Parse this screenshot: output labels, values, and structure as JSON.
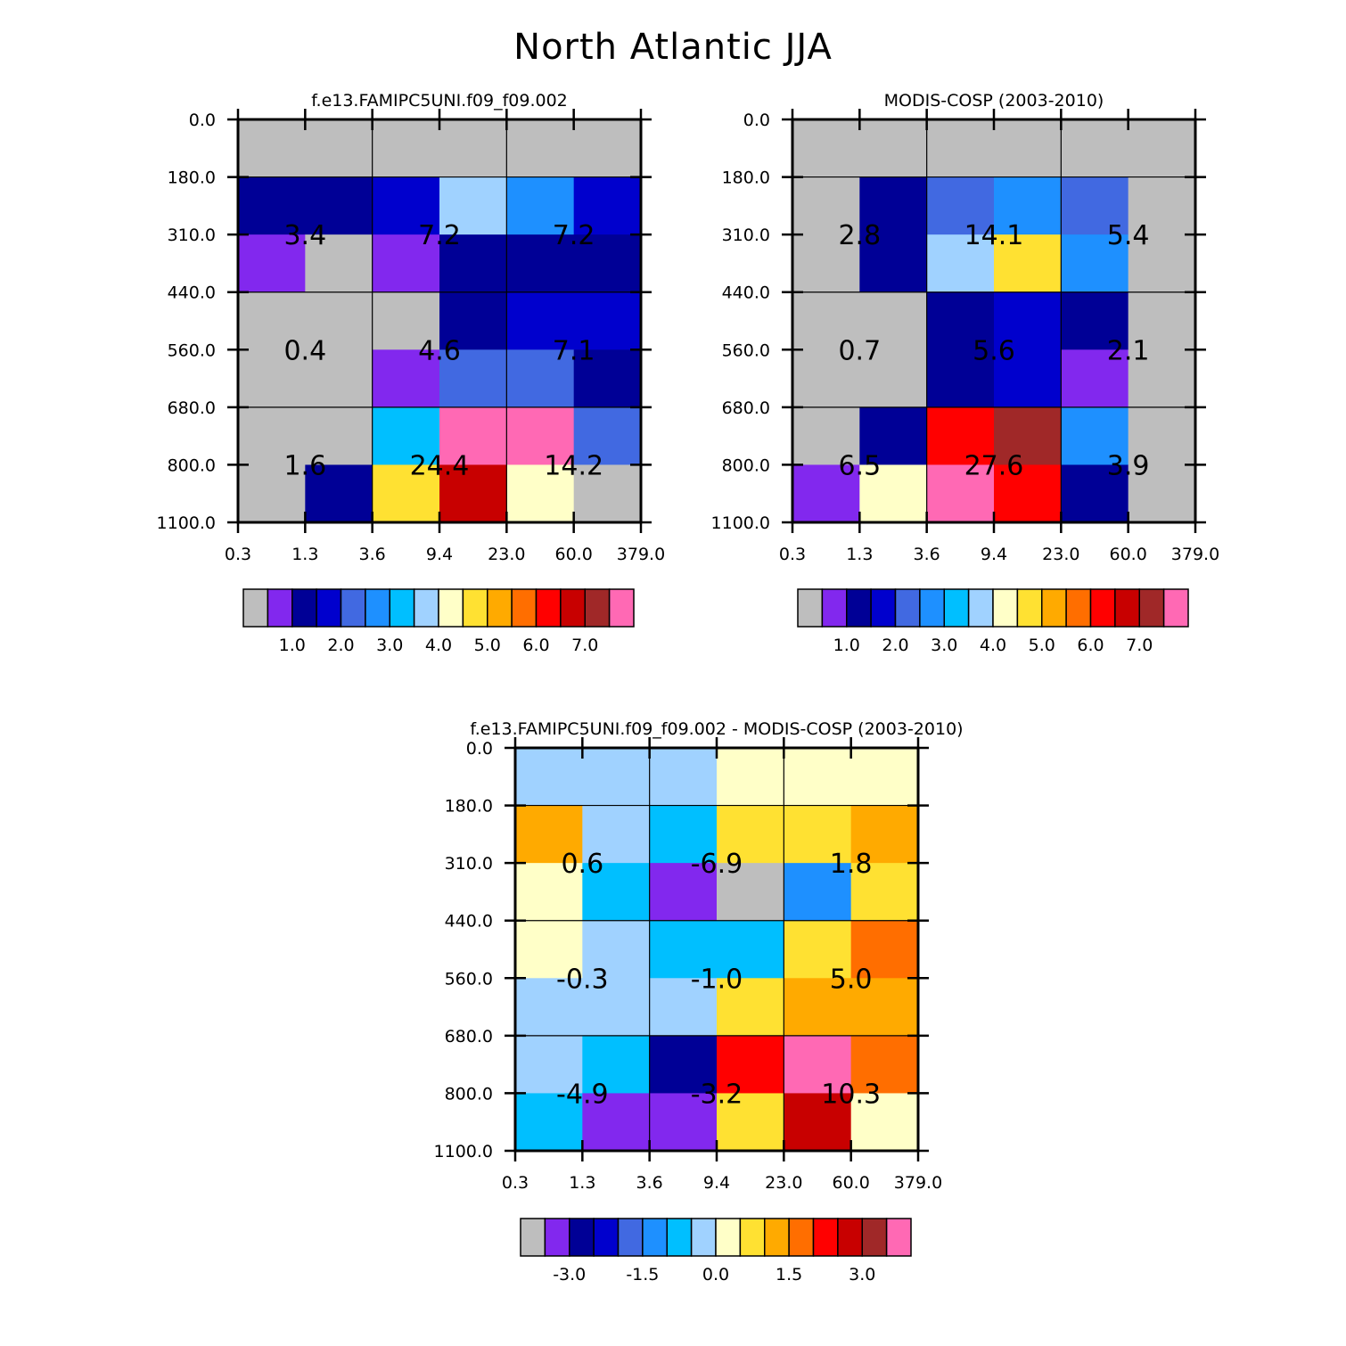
{
  "title": "North Atlantic JJA",
  "colors": {
    "palette": [
      "#bebebe",
      "#8228ee",
      "#000096",
      "#0000cd",
      "#4169e1",
      "#1e90ff",
      "#00bfff",
      "#a0d2ff",
      "#ffffc8",
      "#ffe132",
      "#ffaa00",
      "#ff6e00",
      "#ff0000",
      "#c80000",
      "#a02828",
      "#ff69b4"
    ],
    "grid_line": "#000000",
    "frame": "#000000"
  },
  "chart_data": [
    {
      "type": "heatmap",
      "name": "model",
      "title": "f.e13.FAMIPC5UNI.f09_f09.002",
      "x_ticks": [
        "0.3",
        "1.3",
        "3.6",
        "9.4",
        "23.0",
        "60.0",
        "379.0"
      ],
      "y_ticks": [
        "0.0",
        "180.0",
        "310.0",
        "440.0",
        "560.0",
        "680.0",
        "800.0",
        "1100.0"
      ],
      "cells": [
        [
          0,
          0,
          0,
          0,
          0,
          0
        ],
        [
          2,
          2,
          3,
          7,
          5,
          3
        ],
        [
          1,
          0,
          1,
          2,
          2,
          2
        ],
        [
          0,
          0,
          0,
          2,
          3,
          3
        ],
        [
          0,
          0,
          1,
          4,
          4,
          2
        ],
        [
          0,
          0,
          6,
          15,
          15,
          4
        ],
        [
          0,
          2,
          9,
          13,
          8,
          0
        ]
      ],
      "block_labels": [
        [
          "3.4",
          "7.2",
          "7.2"
        ],
        [
          "0.4",
          "4.6",
          "7.1"
        ],
        [
          "1.6",
          "24.4",
          "14.2"
        ]
      ],
      "colorbar_labels": [
        "1.0",
        "2.0",
        "3.0",
        "4.0",
        "5.0",
        "6.0",
        "7.0"
      ]
    },
    {
      "type": "heatmap",
      "name": "observations",
      "title": "MODIS-COSP (2003-2010)",
      "x_ticks": [
        "0.3",
        "1.3",
        "3.6",
        "9.4",
        "23.0",
        "60.0",
        "379.0"
      ],
      "y_ticks": [
        "0.0",
        "180.0",
        "310.0",
        "440.0",
        "560.0",
        "680.0",
        "800.0",
        "1100.0"
      ],
      "cells": [
        [
          0,
          0,
          0,
          0,
          0,
          0
        ],
        [
          0,
          2,
          4,
          5,
          4,
          0
        ],
        [
          0,
          2,
          7,
          9,
          5,
          0
        ],
        [
          0,
          0,
          2,
          3,
          2,
          0
        ],
        [
          0,
          0,
          2,
          3,
          1,
          0
        ],
        [
          0,
          2,
          12,
          14,
          5,
          0
        ],
        [
          1,
          8,
          15,
          12,
          2,
          0
        ]
      ],
      "block_labels": [
        [
          "2.8",
          "14.1",
          "5.4"
        ],
        [
          "0.7",
          "5.6",
          "2.1"
        ],
        [
          "6.5",
          "27.6",
          "3.9"
        ]
      ],
      "colorbar_labels": [
        "1.0",
        "2.0",
        "3.0",
        "4.0",
        "5.0",
        "6.0",
        "7.0"
      ]
    },
    {
      "type": "heatmap",
      "name": "difference",
      "title": "f.e13.FAMIPC5UNI.f09_f09.002 - MODIS-COSP (2003-2010)",
      "x_ticks": [
        "0.3",
        "1.3",
        "3.6",
        "9.4",
        "23.0",
        "60.0",
        "379.0"
      ],
      "y_ticks": [
        "0.0",
        "180.0",
        "310.0",
        "440.0",
        "560.0",
        "680.0",
        "800.0",
        "1100.0"
      ],
      "cells": [
        [
          7,
          7,
          7,
          8,
          8,
          8
        ],
        [
          10,
          7,
          6,
          9,
          9,
          10
        ],
        [
          8,
          6,
          1,
          0,
          5,
          9
        ],
        [
          8,
          7,
          6,
          6,
          9,
          11
        ],
        [
          7,
          7,
          7,
          9,
          10,
          10
        ],
        [
          7,
          6,
          2,
          12,
          15,
          11
        ],
        [
          6,
          1,
          1,
          9,
          13,
          8
        ]
      ],
      "block_labels": [
        [
          "0.6",
          "-6.9",
          "1.8"
        ],
        [
          "-0.3",
          "-1.0",
          "5.0"
        ],
        [
          "-4.9",
          "-3.2",
          "10.3"
        ]
      ],
      "colorbar_labels": [
        "-3.0",
        "-1.5",
        "0.0",
        "1.5",
        "3.0"
      ]
    }
  ]
}
